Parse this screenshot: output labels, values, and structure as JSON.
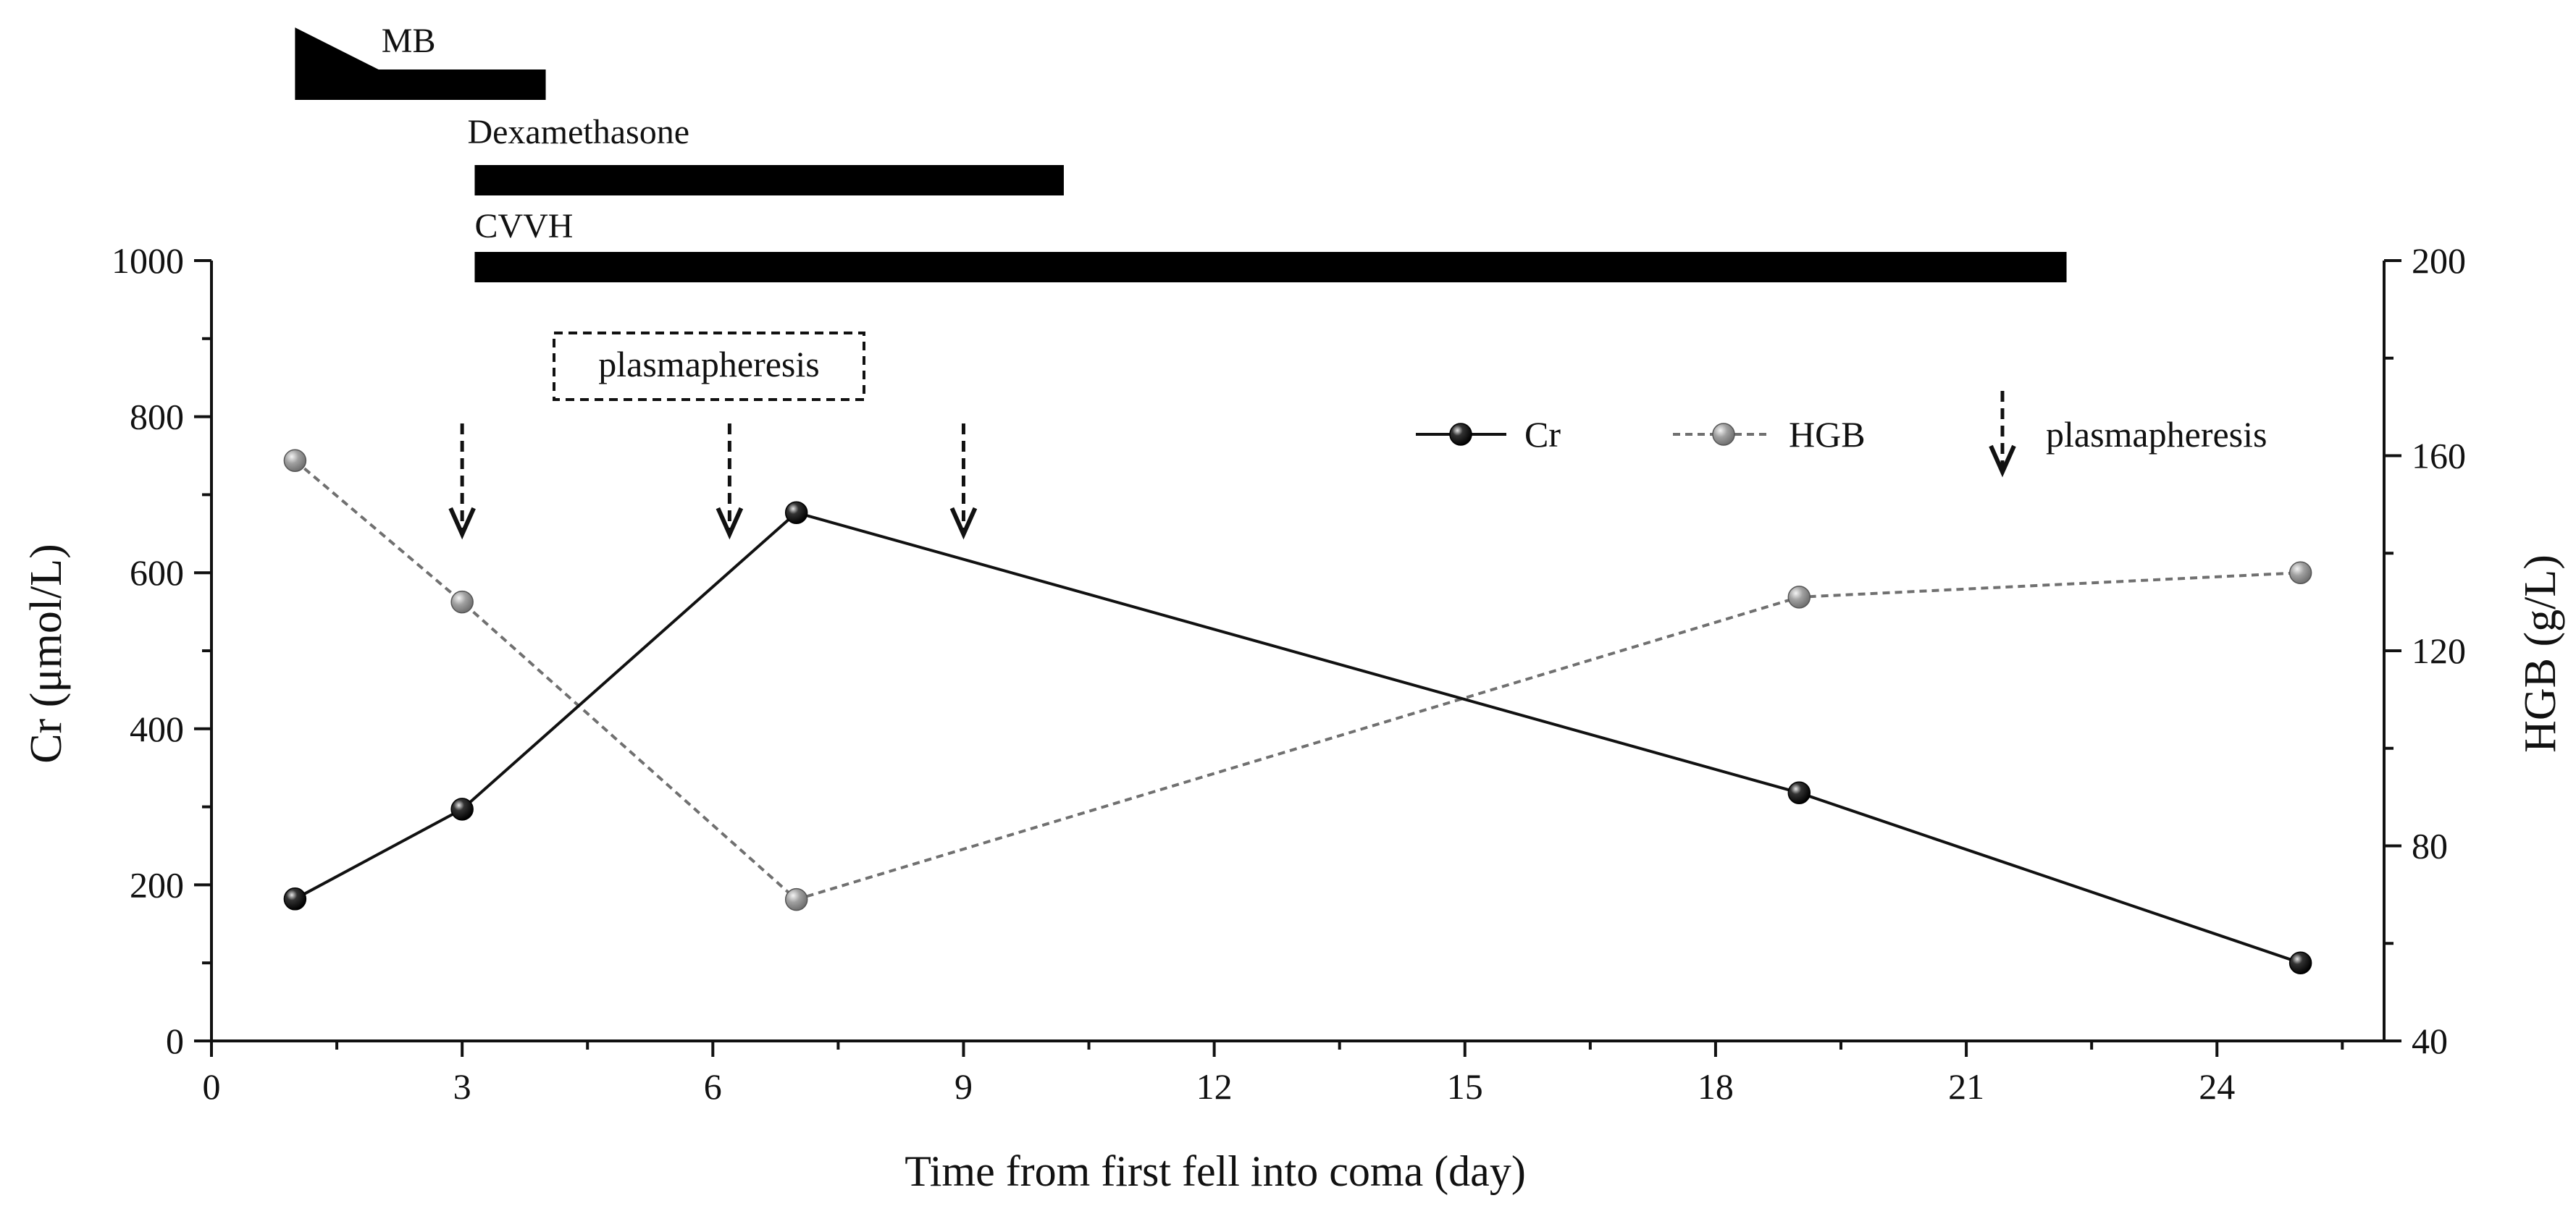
{
  "chart_data": {
    "type": "line",
    "xlabel": "Time from first fell into coma (day)",
    "ylabel_left": "Cr (μmol/L)",
    "ylabel_right": "HGB (g/L)",
    "xlim": [
      0,
      26
    ],
    "ylim_left": [
      0,
      1000
    ],
    "ylim_right": [
      40,
      200
    ],
    "x_ticks": [
      0,
      3,
      6,
      9,
      12,
      15,
      18,
      21,
      24
    ],
    "y_left_ticks": [
      0,
      200,
      400,
      600,
      800,
      1000
    ],
    "y_right_ticks": [
      40,
      80,
      120,
      160,
      200
    ],
    "legend_position": "top-right",
    "series": [
      {
        "name": "Cr",
        "axis": "left",
        "style": "solid",
        "color": "#000000",
        "x": [
          1,
          3,
          7,
          19,
          25
        ],
        "values": [
          182,
          297,
          677,
          318,
          100
        ]
      },
      {
        "name": "HGB",
        "axis": "right",
        "style": "dashed",
        "color": "#808080",
        "x": [
          1,
          3,
          7,
          19,
          25
        ],
        "values": [
          159,
          130,
          69,
          131,
          136
        ]
      }
    ],
    "plasmapheresis_days": [
      3,
      6.2,
      9
    ],
    "legend_arrow_label": "plasmapheresis",
    "annotation_box": "plasmapheresis",
    "treatments": [
      {
        "label": "MB",
        "start": 1,
        "end": 4,
        "taper_end": 2
      },
      {
        "label": "Dexamethasone",
        "start": 3.15,
        "end": 10.2
      },
      {
        "label": "CVVH",
        "start": 3.15,
        "end": 22.2
      }
    ]
  }
}
